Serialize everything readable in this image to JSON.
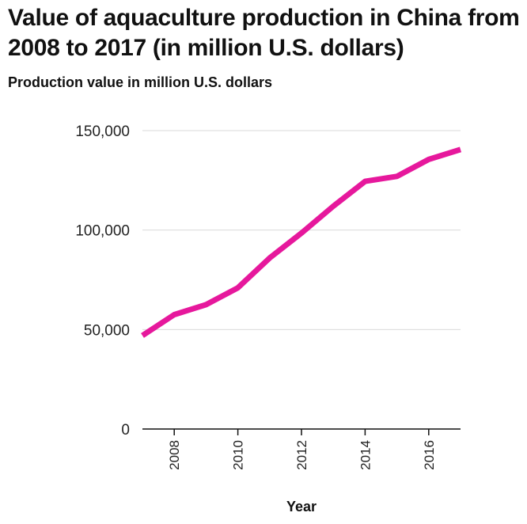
{
  "chart_data": {
    "type": "line",
    "title": "Value of aquaculture production in China from 2008 to 2017 (in million U.S. dollars)",
    "ylabel": "Production value in million U.S. dollars",
    "xlabel": "Year",
    "x": [
      2007,
      2008,
      2009,
      2010,
      2011,
      2012,
      2013,
      2014,
      2015,
      2016,
      2017
    ],
    "series": [
      {
        "values": [
          47000,
          57500,
          62500,
          71000,
          86000,
          98500,
          112000,
          124500,
          127000,
          135500,
          140500
        ],
        "color": "#e6189c"
      }
    ],
    "xlim": [
      2007,
      2017
    ],
    "ylim": [
      0,
      150000
    ],
    "yticks": [
      0,
      50000,
      100000,
      150000
    ],
    "ytick_labels": [
      "0",
      "50,000",
      "100,000",
      "150,000"
    ],
    "xticks": [
      2008,
      2010,
      2012,
      2014,
      2016
    ],
    "xtick_labels": [
      "2008",
      "2010",
      "2012",
      "2014",
      "2016"
    ],
    "grid": true,
    "legend": "none"
  }
}
